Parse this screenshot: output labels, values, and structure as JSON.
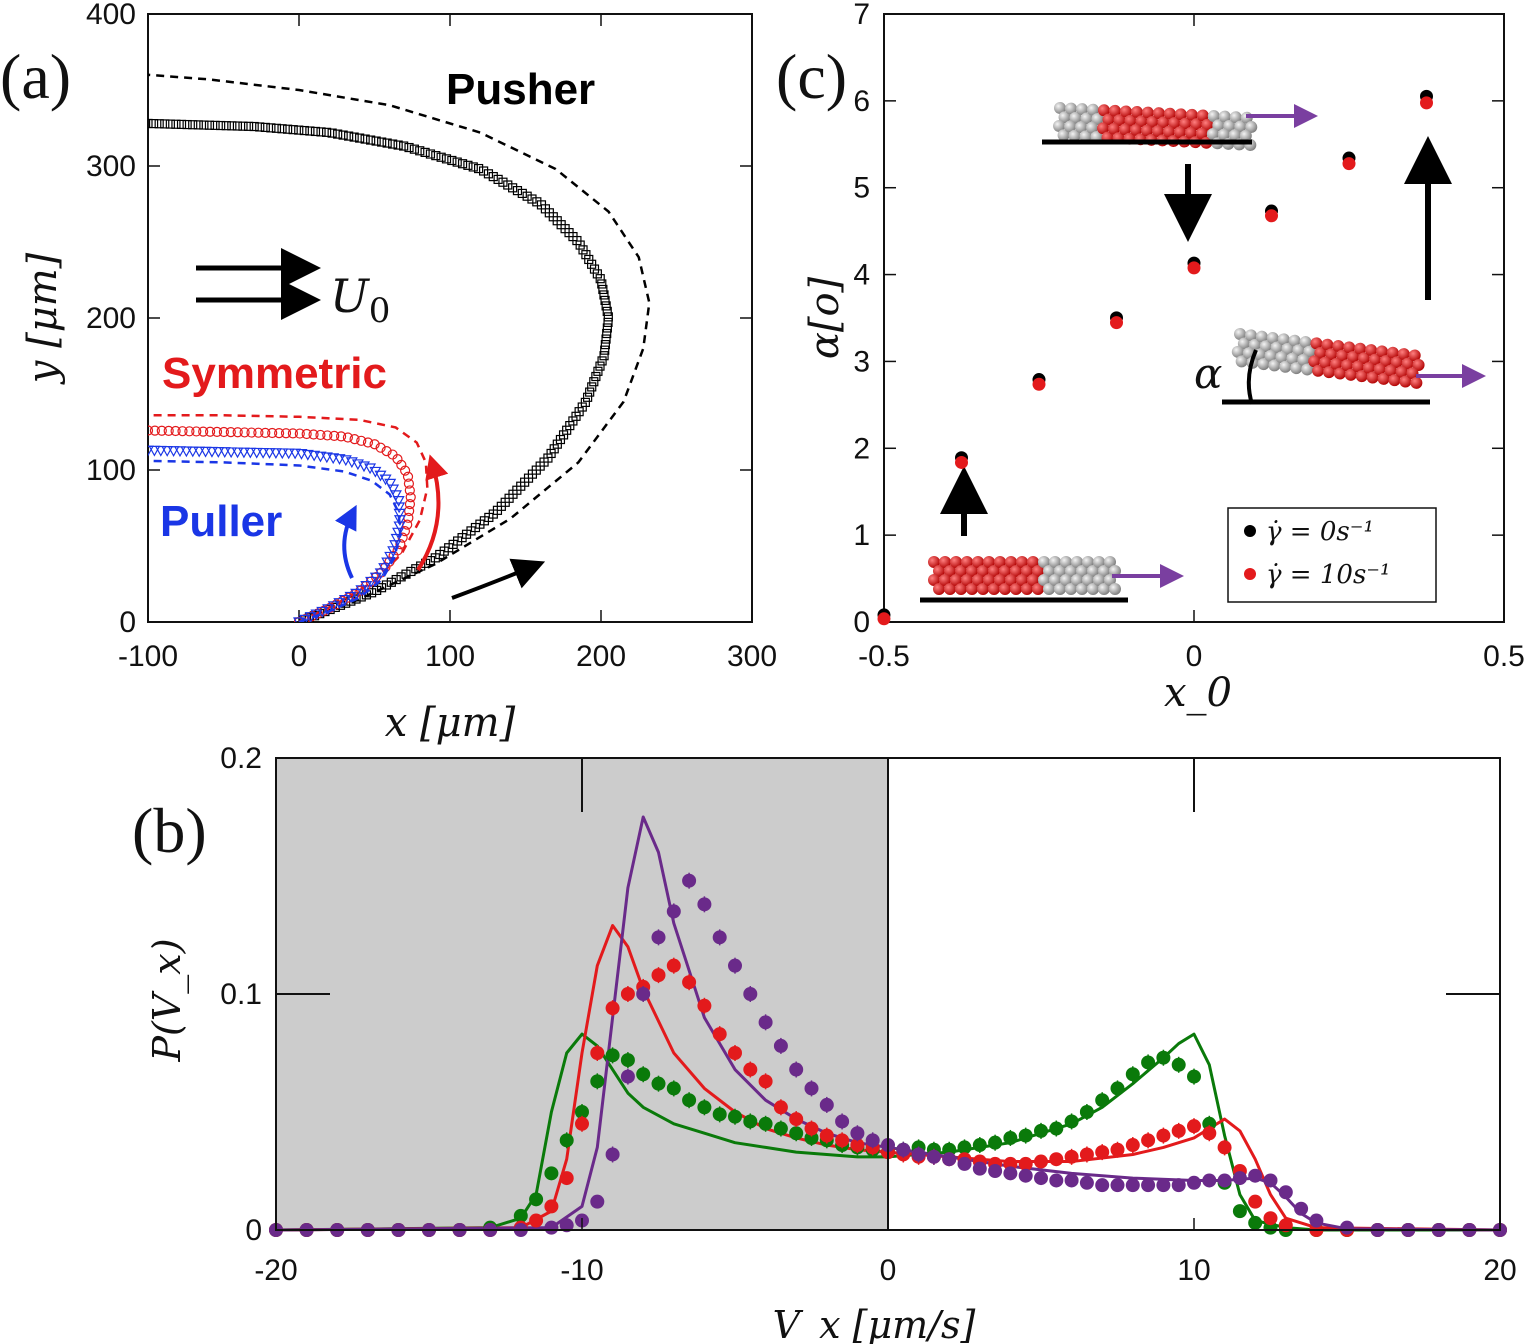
{
  "chart_data": [
    {
      "panel": "(a)",
      "type": "line",
      "xlabel": "x [μm]",
      "ylabel": "y [μm]",
      "xlim": [
        -100,
        300
      ],
      "ylim": [
        0,
        400
      ],
      "xticks": [
        "-100",
        "0",
        "100",
        "200",
        "300"
      ],
      "yticks": [
        "0",
        "100",
        "200",
        "300",
        "400"
      ],
      "annotations": {
        "pusher": "Pusher",
        "symmetric": "Symmetric",
        "puller": "Puller",
        "flow": "U",
        "flow_sub": "0"
      },
      "series": [
        {
          "name": "Pusher",
          "color": "#000000",
          "marker": "square",
          "x": [
            0,
            20,
            50,
            90,
            130,
            165,
            190,
            202,
            205,
            200,
            185,
            160,
            120,
            70,
            20,
            -30,
            -100
          ],
          "y": [
            0,
            8,
            20,
            42,
            72,
            108,
            145,
            175,
            200,
            225,
            250,
            275,
            298,
            313,
            322,
            326,
            328
          ]
        },
        {
          "name": "Pusher model",
          "color": "#000000",
          "style": "dashed",
          "x": [
            0,
            40,
            90,
            140,
            185,
            215,
            228,
            232,
            225,
            205,
            170,
            120,
            60,
            0,
            -60,
            -100
          ],
          "y": [
            0,
            15,
            38,
            68,
            105,
            145,
            180,
            210,
            240,
            270,
            298,
            322,
            340,
            350,
            357,
            360
          ]
        },
        {
          "name": "Symmetric",
          "color": "#e31a1c",
          "marker": "circle",
          "x": [
            0,
            20,
            40,
            55,
            66,
            72,
            74,
            72,
            64,
            50,
            30,
            0,
            -50,
            -100
          ],
          "y": [
            0,
            9,
            20,
            33,
            48,
            65,
            82,
            97,
            109,
            117,
            122,
            124,
            125,
            126
          ]
        },
        {
          "name": "Symmetric model",
          "color": "#e31a1c",
          "style": "dashed",
          "x": [
            0,
            25,
            50,
            68,
            80,
            85,
            84,
            78,
            64,
            40,
            0,
            -50,
            -100
          ],
          "y": [
            0,
            12,
            27,
            45,
            67,
            88,
            105,
            118,
            128,
            133,
            135,
            136,
            136
          ]
        },
        {
          "name": "Puller",
          "color": "#1a36e6",
          "marker": "triangle",
          "x": [
            0,
            20,
            40,
            55,
            63,
            67,
            66,
            60,
            48,
            30,
            0,
            -50,
            -100
          ],
          "y": [
            0,
            9,
            20,
            33,
            48,
            65,
            80,
            92,
            101,
            107,
            111,
            112,
            113
          ]
        },
        {
          "name": "Puller model",
          "color": "#1a36e6",
          "style": "dashed",
          "x": [
            0,
            20,
            40,
            55,
            63,
            67,
            66,
            60,
            48,
            30,
            0,
            -50,
            -100
          ],
          "y": [
            0,
            7,
            16,
            28,
            42,
            58,
            72,
            84,
            93,
            99,
            103,
            105,
            106
          ]
        }
      ]
    },
    {
      "panel": "(b)",
      "type": "line",
      "xlabel": "V_x [μm/s]",
      "ylabel": "P(V_x)",
      "xlim": [
        -20,
        20
      ],
      "ylim": [
        0,
        0.2
      ],
      "xticks": [
        "-20",
        "-10",
        "0",
        "10",
        "20"
      ],
      "yticks": [
        "0",
        "0.1",
        "0.2"
      ],
      "shaded_region": [
        -20,
        0
      ],
      "curves": [
        {
          "name": "green",
          "color": "#0a7a0a",
          "x": [
            -20,
            -13,
            -12,
            -11.5,
            -11,
            -10.5,
            -10,
            -9.5,
            -9,
            -8.5,
            -8,
            -7,
            -6,
            -5,
            -4,
            -3,
            -2,
            -1,
            0,
            2,
            4,
            6,
            7,
            8,
            9,
            9.5,
            10,
            10.5,
            11,
            11.5,
            12,
            13,
            14,
            20
          ],
          "y": [
            0,
            0.001,
            0.005,
            0.015,
            0.05,
            0.075,
            0.083,
            0.078,
            0.068,
            0.058,
            0.052,
            0.045,
            0.041,
            0.037,
            0.035,
            0.033,
            0.032,
            0.031,
            0.031,
            0.033,
            0.037,
            0.045,
            0.052,
            0.062,
            0.073,
            0.079,
            0.083,
            0.07,
            0.04,
            0.015,
            0.004,
            0.001,
            0,
            0
          ]
        },
        {
          "name": "red",
          "color": "#e31a1c",
          "x": [
            -20,
            -12,
            -11,
            -10.5,
            -10,
            -9.5,
            -9,
            -8.5,
            -8,
            -7,
            -6,
            -5,
            -4,
            -3,
            -2,
            -1,
            0,
            2,
            4,
            6,
            8,
            9,
            10,
            10.5,
            11,
            11.5,
            12,
            12.5,
            13,
            14,
            20
          ],
          "y": [
            0,
            0.001,
            0.008,
            0.03,
            0.075,
            0.112,
            0.129,
            0.12,
            0.102,
            0.075,
            0.06,
            0.05,
            0.043,
            0.039,
            0.036,
            0.034,
            0.033,
            0.031,
            0.029,
            0.029,
            0.032,
            0.035,
            0.039,
            0.043,
            0.047,
            0.042,
            0.03,
            0.015,
            0.005,
            0.001,
            0
          ]
        },
        {
          "name": "purple",
          "color": "#6a2a8a",
          "x": [
            -20,
            -11,
            -10,
            -9.5,
            -9,
            -8.5,
            -8,
            -7.5,
            -7,
            -6,
            -5,
            -4,
            -3,
            -2,
            -1,
            0,
            2,
            4,
            6,
            8,
            10,
            11,
            12,
            12.5,
            13,
            13.5,
            14,
            15,
            20
          ],
          "y": [
            0,
            0.001,
            0.01,
            0.035,
            0.09,
            0.145,
            0.175,
            0.16,
            0.13,
            0.09,
            0.068,
            0.055,
            0.047,
            0.041,
            0.037,
            0.035,
            0.031,
            0.027,
            0.024,
            0.022,
            0.021,
            0.021,
            0.022,
            0.02,
            0.014,
            0.007,
            0.003,
            0.0005,
            0
          ]
        }
      ],
      "scatter": [
        {
          "name": "green data",
          "color": "#0a7a0a",
          "x": [
            -20,
            -19,
            -18,
            -17,
            -16,
            -15,
            -14,
            -13,
            -12,
            -11.5,
            -11,
            -10.5,
            -10,
            -9.5,
            -9,
            -8.5,
            -8,
            -7.5,
            -7,
            -6.5,
            -6,
            -5.5,
            -5,
            -4.5,
            -4,
            -3.5,
            -3,
            -2.5,
            -2,
            -1.5,
            -1,
            -0.5,
            0,
            0.5,
            1,
            1.5,
            2,
            2.5,
            3,
            3.5,
            4,
            4.5,
            5,
            5.5,
            6,
            6.5,
            7,
            7.5,
            8,
            8.5,
            9,
            9.5,
            10,
            10.5,
            11,
            11.5,
            12,
            12.5,
            13,
            14,
            15,
            16,
            17,
            18,
            19,
            20
          ],
          "y": [
            0,
            0,
            0,
            0,
            0,
            0,
            0,
            0.001,
            0.006,
            0.013,
            0.024,
            0.038,
            0.05,
            0.063,
            0.074,
            0.072,
            0.066,
            0.062,
            0.06,
            0.055,
            0.052,
            0.049,
            0.048,
            0.046,
            0.045,
            0.043,
            0.041,
            0.039,
            0.038,
            0.036,
            0.035,
            0.034,
            0.033,
            0.034,
            0.035,
            0.034,
            0.034,
            0.035,
            0.036,
            0.037,
            0.039,
            0.04,
            0.042,
            0.043,
            0.046,
            0.05,
            0.055,
            0.06,
            0.066,
            0.071,
            0.073,
            0.07,
            0.065,
            0.045,
            0.02,
            0.008,
            0.003,
            0.001,
            0,
            0,
            0,
            0,
            0,
            0,
            0,
            0
          ]
        },
        {
          "name": "red data",
          "color": "#e31a1c",
          "x": [
            -20,
            -19,
            -18,
            -17,
            -16,
            -15,
            -14,
            -13,
            -12,
            -11.5,
            -11,
            -10.5,
            -10,
            -9.5,
            -9,
            -8.5,
            -8,
            -7.5,
            -7,
            -6.5,
            -6,
            -5.5,
            -5,
            -4.5,
            -4,
            -3.5,
            -3,
            -2.5,
            -2,
            -1.5,
            -1,
            -0.5,
            0,
            0.5,
            1,
            1.5,
            2,
            2.5,
            3,
            3.5,
            4,
            4.5,
            5,
            5.5,
            6,
            6.5,
            7,
            7.5,
            8,
            8.5,
            9,
            9.5,
            10,
            10.5,
            11,
            11.5,
            12,
            12.5,
            13,
            14,
            15,
            16,
            17,
            18,
            19,
            20
          ],
          "y": [
            0,
            0,
            0,
            0,
            0,
            0,
            0,
            0,
            0.001,
            0.004,
            0.01,
            0.022,
            0.045,
            0.075,
            0.094,
            0.1,
            0.103,
            0.108,
            0.112,
            0.105,
            0.095,
            0.083,
            0.075,
            0.068,
            0.063,
            0.052,
            0.047,
            0.043,
            0.04,
            0.038,
            0.036,
            0.035,
            0.033,
            0.032,
            0.031,
            0.031,
            0.03,
            0.03,
            0.029,
            0.028,
            0.028,
            0.028,
            0.029,
            0.03,
            0.031,
            0.032,
            0.033,
            0.034,
            0.036,
            0.038,
            0.04,
            0.042,
            0.044,
            0.041,
            0.035,
            0.025,
            0.012,
            0.005,
            0.002,
            0,
            0,
            0,
            0,
            0,
            0,
            0
          ]
        },
        {
          "name": "purple data",
          "color": "#6a2a8a",
          "x": [
            -20,
            -19,
            -18,
            -17,
            -16,
            -15,
            -14,
            -13,
            -12,
            -11,
            -10.5,
            -10,
            -9.5,
            -9,
            -8.5,
            -8,
            -7.5,
            -7,
            -6.5,
            -6,
            -5.5,
            -5,
            -4.5,
            -4,
            -3.5,
            -3,
            -2.5,
            -2,
            -1.5,
            -1,
            -0.5,
            0,
            0.5,
            1,
            1.5,
            2,
            2.5,
            3,
            3.5,
            4,
            4.5,
            5,
            5.5,
            6,
            6.5,
            7,
            7.5,
            8,
            8.5,
            9,
            9.5,
            10,
            10.5,
            11,
            11.5,
            12,
            12.5,
            13,
            13.5,
            14,
            15,
            16,
            17,
            18,
            19,
            20
          ],
          "y": [
            0,
            0,
            0,
            0,
            0,
            0,
            0,
            0,
            0,
            0.001,
            0.002,
            0.004,
            0.012,
            0.032,
            0.065,
            0.1,
            0.124,
            0.135,
            0.148,
            0.138,
            0.124,
            0.112,
            0.1,
            0.088,
            0.078,
            0.068,
            0.06,
            0.053,
            0.046,
            0.041,
            0.038,
            0.036,
            0.034,
            0.032,
            0.031,
            0.03,
            0.028,
            0.026,
            0.025,
            0.024,
            0.023,
            0.022,
            0.021,
            0.021,
            0.02,
            0.019,
            0.019,
            0.019,
            0.019,
            0.019,
            0.019,
            0.02,
            0.021,
            0.021,
            0.022,
            0.023,
            0.021,
            0.016,
            0.009,
            0.004,
            0.001,
            0,
            0,
            0,
            0,
            0
          ]
        }
      ]
    },
    {
      "panel": "(c)",
      "type": "scatter",
      "xlabel": "x_0",
      "ylabel": "α[o]",
      "xlim": [
        -0.5,
        0.5
      ],
      "ylim": [
        0,
        7
      ],
      "xticks": [
        "-0.5",
        "0",
        "0.5"
      ],
      "yticks": [
        "0",
        "1",
        "2",
        "3",
        "4",
        "5",
        "6",
        "7"
      ],
      "angle_label": "α",
      "legend": [
        {
          "text": "γ̇ = 0s⁻¹",
          "color": "#000000"
        },
        {
          "text": "γ̇ = 10s⁻¹",
          "color": "#e31a1c"
        }
      ],
      "series": [
        {
          "name": "γ̇ = 0s⁻¹",
          "color": "#000000",
          "x": [
            -0.5,
            -0.375,
            -0.25,
            -0.125,
            0,
            0.125,
            0.25,
            0.375
          ],
          "y": [
            0.07,
            1.88,
            2.78,
            3.49,
            4.12,
            4.72,
            5.33,
            6.04
          ]
        },
        {
          "name": "γ̇ = 10s⁻¹",
          "color": "#e31a1c",
          "x": [
            -0.5,
            -0.375,
            -0.25,
            -0.125,
            0,
            0.125,
            0.25,
            0.375
          ],
          "y": [
            0.06,
            1.86,
            2.76,
            3.47,
            4.1,
            4.7,
            5.3,
            6.0
          ]
        }
      ]
    }
  ]
}
